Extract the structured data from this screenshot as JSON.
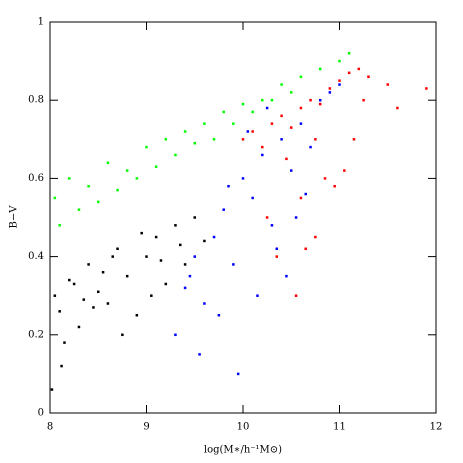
{
  "chart_data": {
    "type": "scatter",
    "xlabel": "log(M∗/h⁻¹M⊙)",
    "ylabel": "B−V",
    "xlim": [
      8,
      12
    ],
    "ylim": [
      0,
      1
    ],
    "xticks": [
      8,
      9,
      10,
      11,
      12
    ],
    "yticks": [
      0,
      0.2,
      0.4,
      0.6,
      0.8,
      1
    ],
    "series": [
      {
        "color": "#000000",
        "x": [
          8.05,
          8.1,
          8.2,
          8.3,
          8.4,
          8.5,
          8.6,
          8.7,
          8.8,
          8.9,
          9.0,
          9.1,
          9.2,
          9.3,
          9.4,
          9.5,
          9.6,
          8.15,
          8.35,
          8.55,
          8.75,
          8.95,
          9.15,
          9.35,
          8.25,
          8.45,
          8.65,
          9.05,
          8.02,
          8.12
        ],
        "values": [
          0.3,
          0.26,
          0.34,
          0.22,
          0.38,
          0.31,
          0.28,
          0.42,
          0.35,
          0.25,
          0.4,
          0.45,
          0.33,
          0.48,
          0.38,
          0.5,
          0.44,
          0.18,
          0.29,
          0.36,
          0.2,
          0.46,
          0.39,
          0.43,
          0.33,
          0.27,
          0.4,
          0.3,
          0.06,
          0.12
        ]
      },
      {
        "color": "#00ff00",
        "x": [
          8.05,
          8.2,
          8.4,
          8.6,
          8.8,
          9.0,
          9.2,
          9.4,
          9.6,
          9.8,
          10.0,
          10.2,
          10.4,
          10.6,
          10.8,
          11.0,
          11.1,
          8.1,
          8.3,
          8.5,
          8.7,
          8.9,
          9.1,
          9.3,
          9.5,
          9.7,
          9.9,
          10.1,
          10.3,
          10.5
        ],
        "values": [
          0.55,
          0.6,
          0.58,
          0.64,
          0.62,
          0.68,
          0.7,
          0.72,
          0.74,
          0.77,
          0.79,
          0.8,
          0.84,
          0.86,
          0.88,
          0.9,
          0.92,
          0.48,
          0.52,
          0.54,
          0.57,
          0.6,
          0.63,
          0.66,
          0.69,
          0.7,
          0.74,
          0.77,
          0.8,
          0.82
        ]
      },
      {
        "color": "#0000ff",
        "x": [
          9.3,
          9.4,
          9.5,
          9.6,
          9.7,
          9.8,
          9.9,
          10.0,
          10.1,
          10.2,
          10.3,
          10.4,
          10.5,
          10.6,
          10.7,
          10.8,
          9.55,
          9.75,
          9.95,
          10.15,
          10.35,
          10.55,
          9.45,
          9.85,
          10.05,
          10.25,
          10.45,
          10.65,
          10.9,
          11.0
        ],
        "values": [
          0.2,
          0.32,
          0.4,
          0.28,
          0.45,
          0.52,
          0.38,
          0.6,
          0.55,
          0.66,
          0.48,
          0.7,
          0.62,
          0.74,
          0.68,
          0.8,
          0.15,
          0.25,
          0.1,
          0.3,
          0.42,
          0.5,
          0.35,
          0.58,
          0.72,
          0.78,
          0.35,
          0.56,
          0.82,
          0.84
        ]
      },
      {
        "color": "#ff0000",
        "x": [
          10.0,
          10.1,
          10.2,
          10.3,
          10.4,
          10.5,
          10.6,
          10.7,
          10.8,
          10.9,
          11.0,
          11.1,
          11.2,
          11.3,
          11.5,
          11.9,
          10.35,
          10.55,
          10.75,
          10.95,
          11.05,
          11.15,
          10.25,
          10.45,
          10.65,
          10.85,
          11.25,
          11.6,
          10.6,
          10.75
        ],
        "values": [
          0.7,
          0.72,
          0.68,
          0.74,
          0.76,
          0.73,
          0.78,
          0.8,
          0.79,
          0.83,
          0.85,
          0.87,
          0.88,
          0.86,
          0.84,
          0.83,
          0.4,
          0.3,
          0.45,
          0.58,
          0.62,
          0.7,
          0.5,
          0.65,
          0.42,
          0.6,
          0.8,
          0.78,
          0.55,
          0.7
        ]
      }
    ]
  }
}
